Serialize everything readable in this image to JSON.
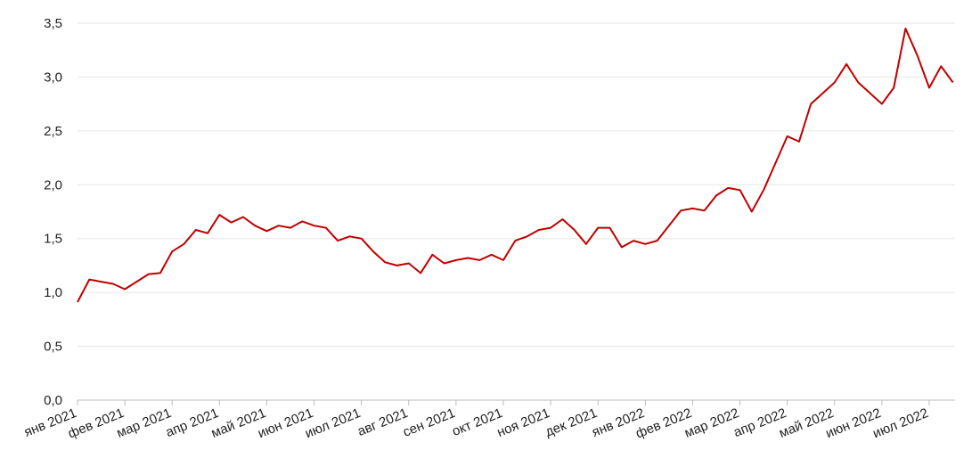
{
  "chart_data": {
    "type": "line",
    "categories": [
      "янв 2021",
      null,
      null,
      null,
      "фев 2021",
      null,
      null,
      null,
      "мар 2021",
      null,
      null,
      null,
      "апр 2021",
      null,
      null,
      null,
      "май 2021",
      null,
      null,
      null,
      "июн 2021",
      null,
      null,
      null,
      "июл 2021",
      null,
      null,
      null,
      "авг 2021",
      null,
      null,
      null,
      "сен 2021",
      null,
      null,
      null,
      "окт 2021",
      null,
      null,
      null,
      "ноя 2021",
      null,
      null,
      null,
      "дек 2021",
      null,
      null,
      null,
      "янв 2022",
      null,
      null,
      null,
      "фев 2022",
      null,
      null,
      null,
      "мар 2022",
      null,
      null,
      null,
      "апр 2022",
      null,
      null,
      null,
      "май 2022",
      null,
      null,
      null,
      "июн 2022",
      null,
      null,
      null,
      "июл 2022",
      null,
      null
    ],
    "series": [
      {
        "color": "#c00000",
        "values": [
          0.91,
          1.12,
          1.1,
          1.08,
          1.03,
          1.1,
          1.17,
          1.18,
          1.38,
          1.45,
          1.58,
          1.55,
          1.72,
          1.65,
          1.7,
          1.62,
          1.57,
          1.62,
          1.6,
          1.66,
          1.62,
          1.6,
          1.48,
          1.52,
          1.5,
          1.38,
          1.28,
          1.25,
          1.27,
          1.18,
          1.35,
          1.27,
          1.3,
          1.32,
          1.3,
          1.35,
          1.3,
          1.48,
          1.52,
          1.58,
          1.6,
          1.68,
          1.58,
          1.45,
          1.6,
          1.6,
          1.42,
          1.48,
          1.45,
          1.48,
          1.62,
          1.76,
          1.78,
          1.76,
          1.9,
          1.97,
          1.95,
          1.75,
          1.95,
          2.2,
          2.45,
          2.4,
          2.75,
          2.85,
          2.95,
          3.12,
          2.95,
          2.85,
          2.75,
          2.9,
          3.45,
          3.2,
          2.9,
          3.1,
          2.95
        ]
      }
    ],
    "ylim": [
      0,
      3.5
    ],
    "yticks": [
      {
        "value": 0,
        "label": "0,0"
      },
      {
        "value": 0.5,
        "label": "0,5"
      },
      {
        "value": 1,
        "label": "1,0"
      },
      {
        "value": 1.5,
        "label": "1,5"
      },
      {
        "value": 2,
        "label": "2,0"
      },
      {
        "value": 2.5,
        "label": "2,5"
      },
      {
        "value": 3,
        "label": "3,0"
      },
      {
        "value": 3.5,
        "label": "3,5"
      }
    ],
    "grid": true
  }
}
